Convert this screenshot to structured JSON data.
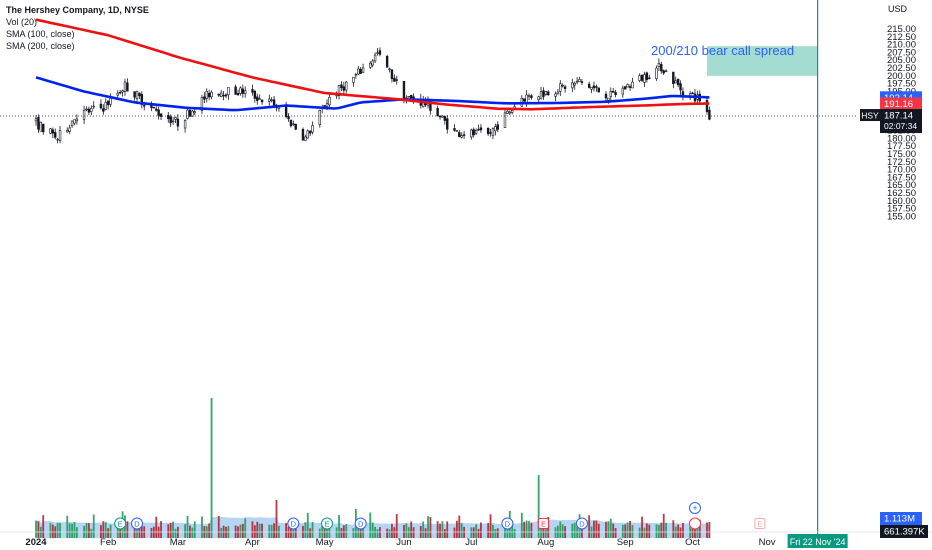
{
  "header": {
    "title": "The Hershey Company, 1D, NYSE",
    "indicators": [
      "Vol (20)",
      "SMA (100, close)",
      "SMA (200, close)"
    ]
  },
  "currency": "USD",
  "annotation": {
    "text": "200/210 bear call spread",
    "color": "#2962ff"
  },
  "colors": {
    "up": "#089981",
    "down": "#f23645",
    "sma100": "#0022ee",
    "sma200": "#ee1111",
    "zone": "#a4dcd2",
    "vline": "#089981"
  },
  "chart_data": {
    "type": "candlestick",
    "symbol": "HSY",
    "interval": "1D",
    "y_axis": {
      "ticks": [
        215.0,
        212.5,
        210.0,
        207.5,
        205.0,
        202.5,
        200.0,
        197.5,
        195.0,
        192.5,
        190.0,
        187.5,
        185.0,
        182.5,
        180.0,
        177.5,
        175.0,
        172.5,
        170.0,
        167.5,
        165.0,
        162.5,
        160.0,
        157.5,
        155.0
      ],
      "tick_labels": [
        "215.00",
        "212.50",
        "210.00",
        "207.50",
        "205.00",
        "202.50",
        "200.00",
        "197.50",
        "195.00",
        "192.50",
        "190.00",
        "187.50",
        "185.00",
        "182.50",
        "180.00",
        "177.50",
        "175.00",
        "172.50",
        "170.00",
        "167.50",
        "165.00",
        "162.50",
        "160.00",
        "157.50",
        "155.00"
      ],
      "range": [
        152.7,
        216.9
      ]
    },
    "x_axis": {
      "tick_labels": [
        "2024",
        "Feb",
        "Mar",
        "Apr",
        "May",
        "Jun",
        "Jul",
        "Aug",
        "Sep",
        "Oct",
        "Nov"
      ],
      "tick_dates": [
        "2024-01-02",
        "2024-02-01",
        "2024-03-01",
        "2024-04-01",
        "2024-05-01",
        "2024-06-03",
        "2024-07-01",
        "2024-08-01",
        "2024-09-03",
        "2024-10-01",
        "2024-11-01"
      ],
      "cursor_label": "Fri 22 Nov '24"
    },
    "series": [
      {
        "name": "SMA (100, close)",
        "kind": "line",
        "points": [
          [
            "2024-01-02",
            199.5
          ],
          [
            "2024-01-22",
            195.0
          ],
          [
            "2024-02-12",
            191.5
          ],
          [
            "2024-03-04",
            189.8
          ],
          [
            "2024-03-25",
            189.0
          ],
          [
            "2024-04-15",
            190.5
          ],
          [
            "2024-05-06",
            189.5
          ],
          [
            "2024-05-16",
            191.5
          ],
          [
            "2024-06-03",
            192.5
          ],
          [
            "2024-06-24",
            192.0
          ],
          [
            "2024-07-15",
            191.2
          ],
          [
            "2024-08-05",
            191.3
          ],
          [
            "2024-08-26",
            191.7
          ],
          [
            "2024-09-13",
            192.8
          ],
          [
            "2024-09-23",
            193.6
          ],
          [
            "2024-10-08",
            193.1
          ]
        ]
      },
      {
        "name": "SMA (200, close)",
        "kind": "line",
        "points": [
          [
            "2024-01-02",
            218.0
          ],
          [
            "2024-02-01",
            213.0
          ],
          [
            "2024-03-01",
            206.0
          ],
          [
            "2024-04-01",
            199.5
          ],
          [
            "2024-05-01",
            194.5
          ],
          [
            "2024-05-29",
            192.7
          ],
          [
            "2024-06-21",
            190.8
          ],
          [
            "2024-07-12",
            189.5
          ],
          [
            "2024-07-26",
            189.3
          ],
          [
            "2024-08-19",
            190.0
          ],
          [
            "2024-09-10",
            190.5
          ],
          [
            "2024-09-27",
            191.0
          ],
          [
            "2024-10-08",
            191.16
          ]
        ]
      },
      {
        "name": "Close (approx.)",
        "kind": "ohlc-close",
        "points": [
          [
            "2024-01-02",
            185.0
          ],
          [
            "2024-01-11",
            180.0
          ],
          [
            "2024-01-19",
            187.5
          ],
          [
            "2024-01-30",
            190.0
          ],
          [
            "2024-02-08",
            197.0
          ],
          [
            "2024-02-20",
            189.0
          ],
          [
            "2024-03-01",
            185.0
          ],
          [
            "2024-03-15",
            195.0
          ],
          [
            "2024-03-28",
            195.0
          ],
          [
            "2024-04-10",
            191.0
          ],
          [
            "2024-04-23",
            180.0
          ],
          [
            "2024-05-03",
            193.0
          ],
          [
            "2024-05-14",
            200.0
          ],
          [
            "2024-05-23",
            207.0
          ],
          [
            "2024-06-04",
            193.0
          ],
          [
            "2024-06-13",
            191.0
          ],
          [
            "2024-06-24",
            182.0
          ],
          [
            "2024-07-08",
            181.0
          ],
          [
            "2024-07-22",
            193.0
          ],
          [
            "2024-08-02",
            195.0
          ],
          [
            "2024-08-15",
            198.0
          ],
          [
            "2024-08-28",
            193.5
          ],
          [
            "2024-09-09",
            199.0
          ],
          [
            "2024-09-18",
            203.0
          ],
          [
            "2024-09-27",
            195.0
          ],
          [
            "2024-10-04",
            192.5
          ],
          [
            "2024-10-08",
            187.14
          ]
        ]
      }
    ],
    "price_labels": [
      {
        "label": "SMA (100)",
        "value": 193.14,
        "text": "193.14",
        "bg": "#2962ff"
      },
      {
        "label": "SMA (200)",
        "value": 191.16,
        "text": "191.16",
        "bg": "#f23645"
      },
      {
        "label": "HSY",
        "value": 187.14,
        "text": "187.14",
        "countdown": "02:07:34",
        "bg": "#131722"
      }
    ],
    "zone": {
      "y_range": [
        200.0,
        209.5
      ],
      "x_range": [
        "2024-10-07",
        "2024-11-22"
      ]
    },
    "volume": {
      "labels": [
        {
          "text": "1.113M",
          "bg": "#2962ff"
        },
        {
          "text": "661.397K",
          "bg": "#131722"
        }
      ]
    },
    "events": [
      {
        "date": "2024-02-06",
        "type": "E"
      },
      {
        "date": "2024-02-13",
        "type": "D"
      },
      {
        "date": "2024-04-18",
        "type": "D"
      },
      {
        "date": "2024-05-02",
        "type": "E"
      },
      {
        "date": "2024-05-16",
        "type": "D"
      },
      {
        "date": "2024-07-16",
        "type": "D"
      },
      {
        "date": "2024-07-31",
        "type": "E"
      },
      {
        "date": "2024-08-16",
        "type": "D"
      },
      {
        "date": "2024-10-02",
        "type": "split"
      },
      {
        "date": "2024-10-29",
        "type": "E"
      }
    ]
  }
}
